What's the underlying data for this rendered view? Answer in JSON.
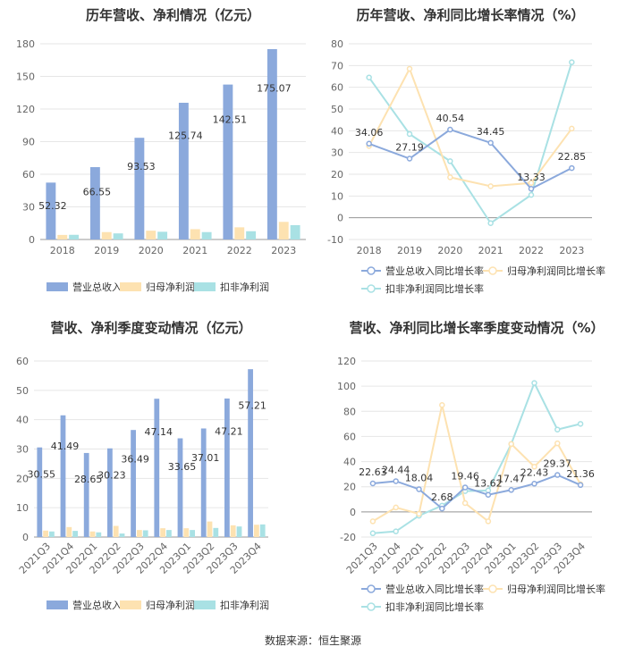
{
  "source": "数据来源：恒生聚源",
  "chart_data": [
    {
      "id": "p1",
      "type": "bar",
      "title": "历年营收、净利情况（亿元）",
      "categories": [
        "2018",
        "2019",
        "2020",
        "2021",
        "2022",
        "2023"
      ],
      "ylim": [
        0,
        180
      ],
      "yticks": [
        0,
        30,
        60,
        90,
        120,
        150,
        180
      ],
      "grid": true,
      "legend_position": "bottom",
      "series": [
        {
          "name": "营业总收入",
          "color": "#8ba9dc",
          "values": [
            52.32,
            66.55,
            93.53,
            125.74,
            142.51,
            175.07
          ],
          "labels": [
            "52.32",
            "66.55",
            "93.53",
            "125.74",
            "142.51",
            "175.07"
          ]
        },
        {
          "name": "归母净利润",
          "color": "#fde2b1",
          "values": [
            4.2,
            6.8,
            8.1,
            9.5,
            11.2,
            16.2
          ]
        },
        {
          "name": "扣非净利润",
          "color": "#a9e1e4",
          "values": [
            4.3,
            5.6,
            7.1,
            6.8,
            7.6,
            13.2
          ]
        }
      ]
    },
    {
      "id": "p2",
      "type": "line",
      "title": "历年营收、净利同比增长率情况（%）",
      "categories": [
        "2018",
        "2019",
        "2020",
        "2021",
        "2022",
        "2023"
      ],
      "ylim": [
        -10,
        80
      ],
      "yticks": [
        -10,
        0,
        10,
        20,
        30,
        40,
        50,
        60,
        70,
        80
      ],
      "grid": true,
      "legend_position": "bottom",
      "series": [
        {
          "name": "营业总收入同比增长率",
          "color": "#8ba9dc",
          "values": [
            34.06,
            27.19,
            40.54,
            34.45,
            13.33,
            22.85
          ],
          "labels": [
            "34.06",
            "27.19",
            "40.54",
            "34.45",
            "13.33",
            "22.85"
          ]
        },
        {
          "name": "归母净利润同比增长率",
          "color": "#fde2b1",
          "values": [
            33.0,
            68.5,
            18.6,
            14.5,
            16.0,
            41.0
          ]
        },
        {
          "name": "扣非净利润同比增长率",
          "color": "#a9e1e4",
          "values": [
            64.5,
            38.5,
            26.0,
            -2.5,
            10.5,
            71.5
          ]
        }
      ]
    },
    {
      "id": "p3",
      "type": "bar",
      "title": "营收、净利季度变动情况（亿元）",
      "categories": [
        "2021Q3",
        "2021Q4",
        "2022Q1",
        "2022Q2",
        "2022Q3",
        "2022Q4",
        "2023Q1",
        "2023Q2",
        "2023Q3",
        "2023Q4"
      ],
      "ylim": [
        0,
        60
      ],
      "yticks": [
        0,
        10,
        20,
        30,
        40,
        50,
        60
      ],
      "grid": true,
      "legend_position": "bottom",
      "series": [
        {
          "name": "营业总收入",
          "color": "#8ba9dc",
          "values": [
            30.55,
            41.49,
            28.65,
            30.23,
            36.49,
            47.14,
            33.65,
            37.01,
            47.21,
            57.21
          ],
          "labels": [
            "30.55",
            "41.49",
            "28.65",
            "30.23",
            "36.49",
            "47.14",
            "33.65",
            "37.01",
            "47.21",
            "57.21"
          ]
        },
        {
          "name": "归母净利润",
          "color": "#fde2b1",
          "values": [
            2.2,
            3.4,
            1.9,
            3.8,
            2.4,
            3.0,
            3.0,
            5.3,
            4.0,
            4.2
          ]
        },
        {
          "name": "扣非净利润",
          "color": "#a9e1e4",
          "values": [
            1.9,
            2.1,
            1.6,
            1.2,
            2.3,
            2.4,
            2.4,
            3.1,
            3.6,
            4.3
          ]
        }
      ]
    },
    {
      "id": "p4",
      "type": "line",
      "title": "营收、净利同比增长率季度变动情况（%）",
      "categories": [
        "2021Q3",
        "2021Q4",
        "2022Q1",
        "2022Q2",
        "2022Q3",
        "2022Q4",
        "2023Q1",
        "2023Q2",
        "2023Q3",
        "2023Q4"
      ],
      "ylim": [
        -20,
        120
      ],
      "yticks": [
        -20,
        0,
        20,
        40,
        60,
        80,
        100,
        120
      ],
      "grid": true,
      "legend_position": "bottom",
      "series": [
        {
          "name": "营业总收入同比增长率",
          "color": "#8ba9dc",
          "values": [
            22.63,
            24.44,
            18.04,
            2.68,
            19.46,
            13.62,
            17.47,
            22.43,
            29.37,
            21.36
          ],
          "labels": [
            "22.63",
            "24.44",
            "18.04",
            "2.68",
            "19.46",
            "13.62",
            "17.47",
            "22.43",
            "29.37",
            "21.36"
          ]
        },
        {
          "name": "归母净利润同比增长率",
          "color": "#fde2b1",
          "values": [
            -7.5,
            3.5,
            -1.5,
            85.0,
            7.0,
            -7.5,
            54.0,
            36.0,
            54.5,
            22.0
          ]
        },
        {
          "name": "扣非净利润同比增长率",
          "color": "#a9e1e4",
          "values": [
            -17.0,
            -15.5,
            -3.0,
            5.0,
            16.5,
            17.0,
            54.0,
            102.5,
            65.5,
            70.0
          ]
        }
      ]
    }
  ]
}
